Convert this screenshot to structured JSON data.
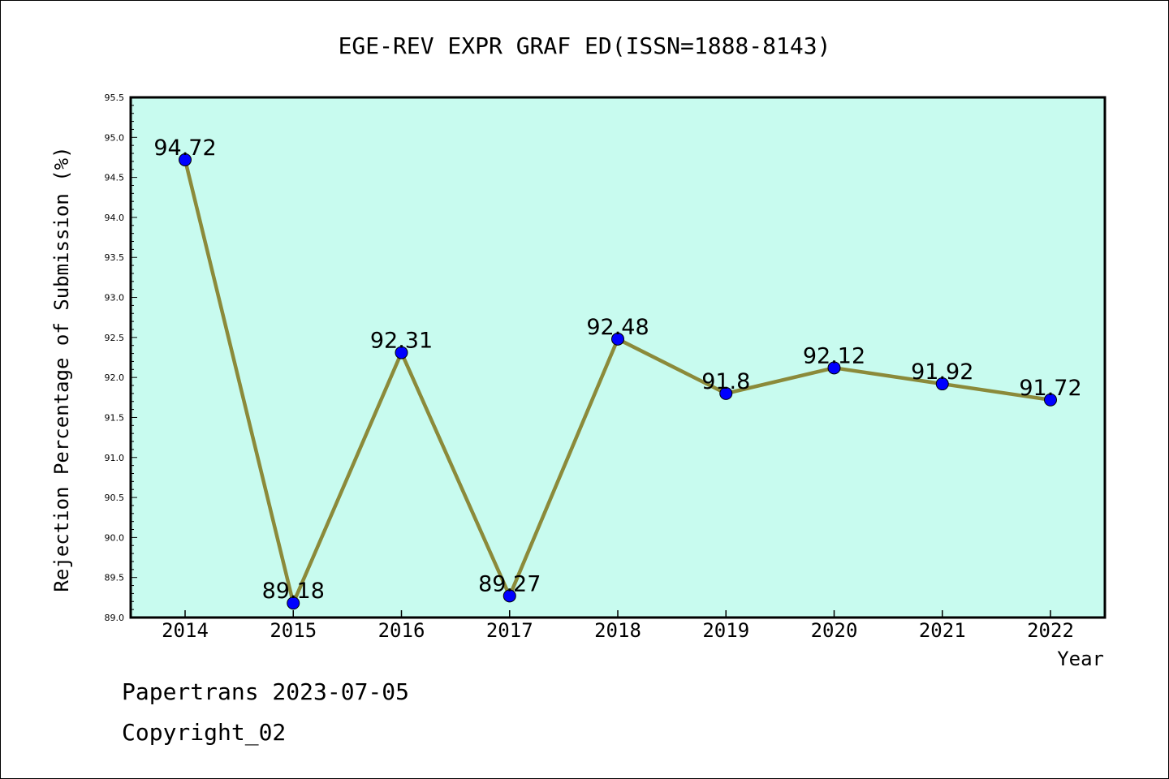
{
  "chart_data": {
    "type": "line",
    "title": "EGE-REV EXPR GRAF ED(ISSN=1888-8143)",
    "xlabel": "Year",
    "ylabel": "Rejection Percentage of Submission (%)",
    "categories": [
      "2014",
      "2015",
      "2016",
      "2017",
      "2018",
      "2019",
      "2020",
      "2021",
      "2022"
    ],
    "values": [
      94.72,
      89.18,
      92.31,
      89.27,
      92.48,
      91.8,
      92.12,
      91.92,
      91.72
    ],
    "data_labels": [
      "94.72",
      "89.18",
      "92.31",
      "89.27",
      "92.48",
      "91.8",
      "92.12",
      "91.92",
      "91.72"
    ],
    "ylim": [
      89.0,
      95.5
    ],
    "yticks": [
      "89.0",
      "89.5",
      "90.0",
      "90.5",
      "91.0",
      "91.5",
      "92.0",
      "92.5",
      "93.0",
      "93.5",
      "94.0",
      "94.5",
      "95.0",
      "95.5"
    ],
    "grid": false,
    "colors": {
      "plot_background": "#c8fbef",
      "line": "#8b8a3a",
      "marker": "#0000ff"
    }
  },
  "footer": {
    "line1": "Papertrans 2023-07-05",
    "line2": "Copyright_02"
  }
}
